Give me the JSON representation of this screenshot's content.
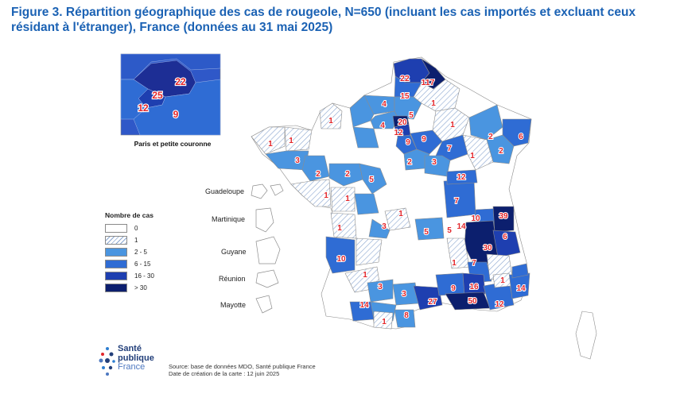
{
  "title": "Figure 3. Répartition géographique des cas de rougeole, N=650 (incluant les cas importés et excluant ceux résidant à l'étranger), France (données au 31 mai 2025)",
  "inset": {
    "caption": "Paris et petite couronne",
    "values": [
      "22",
      "25",
      "12",
      "9"
    ]
  },
  "overseas": [
    "Guadeloupe",
    "Martinique",
    "Guyane",
    "Réunion",
    "Mayotte"
  ],
  "legend": {
    "title": "Nombre de cas",
    "items": [
      {
        "label": "0",
        "color": "#ffffff",
        "hatched": false
      },
      {
        "label": "1",
        "color": "#ffffff",
        "hatched": true
      },
      {
        "label": "2 - 5",
        "color": "#4a95e0"
      },
      {
        "label": "6 - 15",
        "color": "#2f6cd4"
      },
      {
        "label": "16 - 30",
        "color": "#1e3fb0"
      },
      {
        "label": "> 30",
        "color": "#0c1f6e"
      }
    ]
  },
  "department_values": [
    "22",
    "117",
    "15",
    "4",
    "5",
    "1",
    "20",
    "12",
    "4",
    "9",
    "9",
    "7",
    "1",
    "6",
    "1",
    "1",
    "2",
    "3",
    "2",
    "3",
    "12",
    "2",
    "2",
    "5",
    "1",
    "1",
    "2",
    "7",
    "1",
    "1",
    "10",
    "39",
    "3",
    "5",
    "5",
    "14",
    "1",
    "30",
    "6",
    "10",
    "1",
    "7",
    "1",
    "1",
    "9",
    "16",
    "14",
    "3",
    "3",
    "27",
    "50",
    "12",
    "14",
    "8",
    "1",
    "1"
  ],
  "source": {
    "line1": "Source: base de données MDO, Santé publique France",
    "line2": "Date de création de la carte : 12 juin 2025"
  },
  "logo": {
    "line1": "Santé",
    "line2": "publique",
    "line3": "France"
  },
  "colors": {
    "c0": "#ffffff",
    "c2": "#4a95e0",
    "c6": "#2f6cd4",
    "c16": "#1e3fb0",
    "c30": "#0c1f6e",
    "title": "#1b62b4",
    "value_text": "#e3262b"
  }
}
